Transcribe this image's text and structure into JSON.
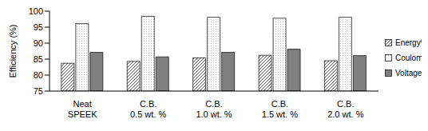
{
  "chart_data": {
    "type": "bar",
    "y_label": "Efficiency (%)",
    "categories": [
      "Neat SPEEK",
      "C.B. 0.5 wt. %",
      "C.B. 1.0 wt. %",
      "C.B. 1.5 wt. %",
      "C.B. 2.0 wt. %"
    ],
    "series": [
      {
        "name": "Energy%",
        "color": "#444444",
        "values": [
          83.7,
          84.3,
          85.4,
          86.2,
          84.5
        ]
      },
      {
        "name": "Coulomb%",
        "color": "#777777",
        "values": [
          96.1,
          98.4,
          98.1,
          97.8,
          98.1
        ]
      },
      {
        "name": "Voltage%",
        "color": "#808080",
        "values": [
          87.1,
          85.7,
          87.1,
          88.1,
          86.1
        ]
      }
    ],
    "ylim": [
      75,
      100
    ],
    "yticks": [
      75,
      80,
      85,
      90,
      95,
      100
    ],
    "grid": false,
    "legend": "right"
  }
}
